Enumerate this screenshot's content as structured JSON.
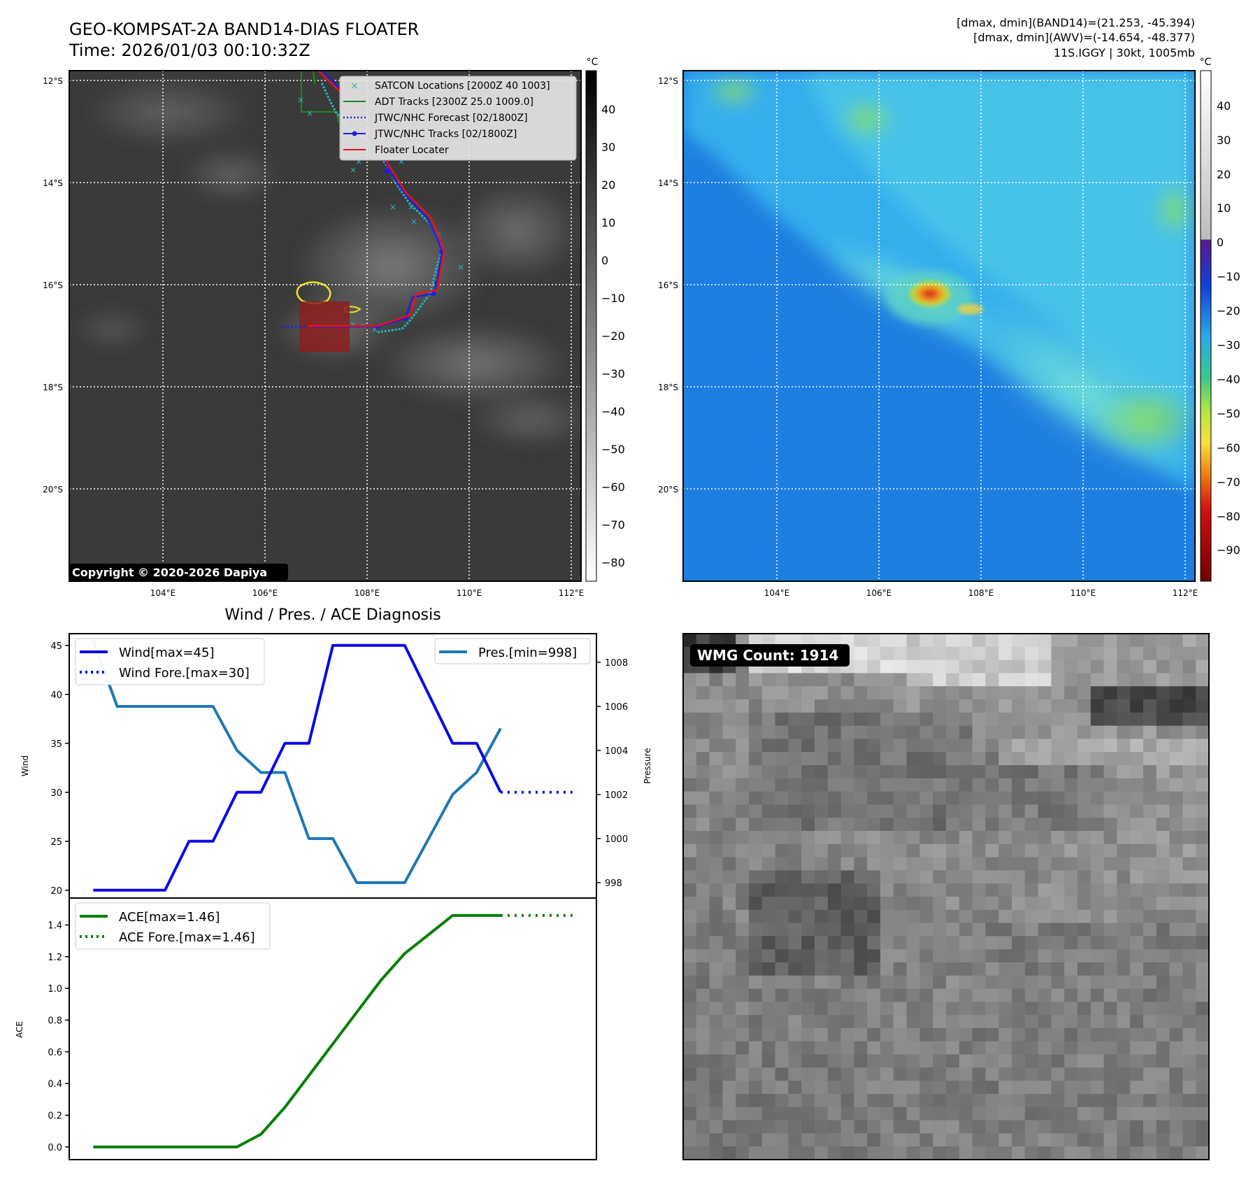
{
  "header": {
    "title_line1": "GEO-KOMPSAT-2A BAND14-DIAS FLOATER",
    "title_line2": "Time: 2026/01/03 00:10:32Z",
    "info_line1": "[dmax, dmin](BAND14)=(21.253, -45.394)",
    "info_line2": "[dmax, dmin](AWV)=(-14.654, -48.377)",
    "info_line3": "11S.IGGY | 30kt, 1005mb"
  },
  "colors": {
    "wind": "#0a0ae6",
    "pressure": "#1f77b4",
    "ace": "#008000",
    "satcon": "#1fb8b8",
    "adt": "#1a8a1a",
    "jtwc_forecast": "#1e1ee8",
    "jtwc_tracks": "#1e1ee8",
    "floater": "#ee1111",
    "ir_background": "#3a3a3a",
    "awv_background": "#1d7fe0"
  },
  "map_ir": {
    "unit_label": "°C",
    "lat_labels": [
      "12°S",
      "14°S",
      "16°S",
      "18°S",
      "20°S"
    ],
    "lon_labels": [
      "104°E",
      "106°E",
      "108°E",
      "110°E",
      "112°E"
    ],
    "colorbar_ticks": [
      "40",
      "30",
      "20",
      "10",
      "0",
      "−10",
      "−20",
      "−30",
      "−40",
      "−50",
      "−60",
      "−70",
      "−80"
    ],
    "copyright": "Copyright © 2020-2026 Dapiya",
    "legend": [
      {
        "label": "SATCON Locations [2000Z 40 1003]",
        "icon": "x-marker-icon"
      },
      {
        "label": "ADT Tracks [2300Z 25.0 1009.0]",
        "icon": "solid-line-icon"
      },
      {
        "label": "JTWC/NHC Forecast [02/1800Z]",
        "icon": "dotted-line-icon"
      },
      {
        "label": "JTWC/NHC Tracks [02/1800Z]",
        "icon": "line-dot-icon"
      },
      {
        "label": "Floater Locater",
        "icon": "solid-line-icon"
      }
    ]
  },
  "map_awv": {
    "unit_label": "°C",
    "lat_labels": [
      "12°S",
      "14°S",
      "16°S",
      "18°S",
      "20°S"
    ],
    "lon_labels": [
      "104°E",
      "106°E",
      "108°E",
      "110°E",
      "112°E"
    ],
    "colorbar_ticks": [
      "40",
      "30",
      "20",
      "10",
      "0",
      "−10",
      "−20",
      "−30",
      "−40",
      "−50",
      "−60",
      "−70",
      "−80",
      "−90"
    ]
  },
  "wmg": {
    "label": "WMG Count: 1914"
  },
  "chart_data": [
    {
      "type": "line",
      "title": "Wind / Pres. / ACE Diagnosis",
      "ylabel": "Wind",
      "ylabel_right": "Pressure",
      "ylim": [
        19.2,
        46.2
      ],
      "ylim_right": [
        997.3,
        1009.3
      ],
      "yticks": [
        20,
        25,
        30,
        35,
        40,
        45
      ],
      "yticks_right": [
        998,
        1000,
        1002,
        1004,
        1006,
        1008
      ],
      "x": [
        0,
        1,
        2,
        3,
        4,
        5,
        6,
        7,
        8,
        9,
        10,
        11,
        12,
        13,
        14,
        15,
        16,
        17,
        18,
        19,
        20
      ],
      "series": [
        {
          "name": "Wind[max=45]",
          "axis": "left",
          "style": "solid",
          "x": [
            0,
            1,
            2,
            3,
            4,
            5,
            6,
            7,
            8,
            9,
            10,
            11,
            12,
            13,
            14,
            15,
            16,
            17
          ],
          "values": [
            20,
            20,
            20,
            20,
            25,
            25,
            30,
            30,
            35,
            35,
            45,
            45,
            45,
            45,
            40,
            35,
            35,
            30
          ]
        },
        {
          "name": "Wind Fore.[max=30]",
          "axis": "left",
          "style": "dotted",
          "x": [
            17,
            18,
            19,
            20
          ],
          "values": [
            30,
            30,
            30,
            30
          ]
        },
        {
          "name": "Pres.[min=998]",
          "axis": "right",
          "style": "solid",
          "x": [
            0,
            1,
            2,
            3,
            4,
            5,
            6,
            7,
            8,
            9,
            10,
            11,
            12,
            13,
            14,
            15,
            16,
            17
          ],
          "values": [
            1009,
            1006,
            1006,
            1006,
            1006,
            1006,
            1004,
            1003,
            1003,
            1000,
            1000,
            998,
            998,
            998,
            1000,
            1002,
            1003,
            1005
          ]
        }
      ]
    },
    {
      "type": "line",
      "title": "",
      "ylabel": "ACE",
      "ylim": [
        -0.08,
        1.57
      ],
      "yticks": [
        0.0,
        0.2,
        0.4,
        0.6,
        0.8,
        1.0,
        1.2,
        1.4
      ],
      "ytick_labels": [
        "0.0",
        "0.2",
        "0.4",
        "0.6",
        "0.8",
        "1.0",
        "1.2",
        "1.4"
      ],
      "series": [
        {
          "name": "ACE[max=1.46]",
          "style": "solid",
          "x": [
            0,
            1,
            2,
            3,
            4,
            5,
            6,
            7,
            8,
            9,
            10,
            11,
            12,
            13,
            14,
            15,
            16,
            17
          ],
          "values": [
            0,
            0,
            0,
            0,
            0,
            0,
            0,
            0.08,
            0.25,
            0.45,
            0.65,
            0.85,
            1.05,
            1.22,
            1.34,
            1.46,
            1.46,
            1.46
          ]
        },
        {
          "name": "ACE Fore.[max=1.46]",
          "style": "dotted",
          "x": [
            17,
            18,
            19,
            20
          ],
          "values": [
            1.46,
            1.46,
            1.46,
            1.46
          ]
        }
      ]
    }
  ]
}
